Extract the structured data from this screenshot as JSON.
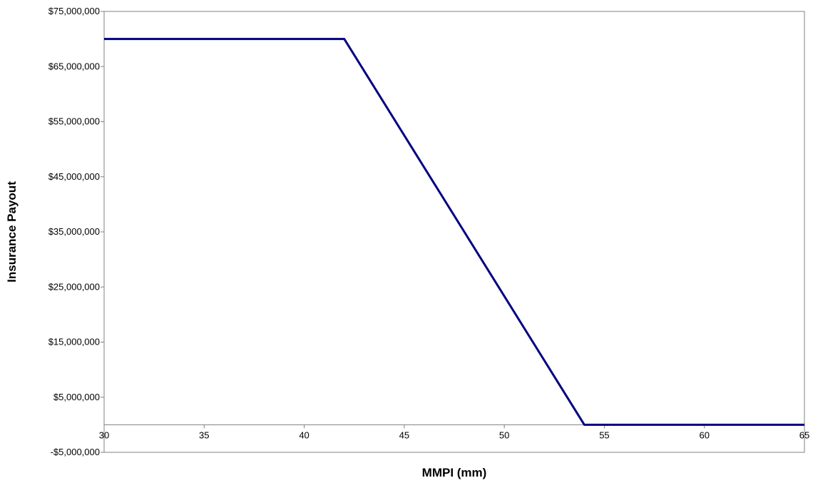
{
  "chart_data": {
    "type": "line",
    "title": "",
    "xlabel": "MMPI (mm)",
    "ylabel": "Insurance Payout",
    "xlim": [
      30,
      65
    ],
    "ylim": [
      -5000000,
      75000000
    ],
    "x_ticks": [
      30,
      35,
      40,
      45,
      50,
      55,
      60,
      65
    ],
    "x_tick_labels": [
      "30",
      "35",
      "40",
      "45",
      "50",
      "55",
      "60",
      "65"
    ],
    "y_ticks": [
      -5000000,
      5000000,
      15000000,
      25000000,
      35000000,
      45000000,
      55000000,
      65000000,
      75000000
    ],
    "y_tick_labels": [
      "-$5,000,000",
      "$5,000,000",
      "$15,000,000",
      "$25,000,000",
      "$35,000,000",
      "$45,000,000",
      "$55,000,000",
      "$65,000,000",
      "$75,000,000"
    ],
    "x_axis_crosses_at": 0,
    "grid": false,
    "series": [
      {
        "color": "#000080",
        "points": [
          {
            "x": 30,
            "y": 70000000
          },
          {
            "x": 42,
            "y": 70000000
          },
          {
            "x": 54,
            "y": 0
          },
          {
            "x": 65,
            "y": 0
          }
        ]
      }
    ]
  }
}
